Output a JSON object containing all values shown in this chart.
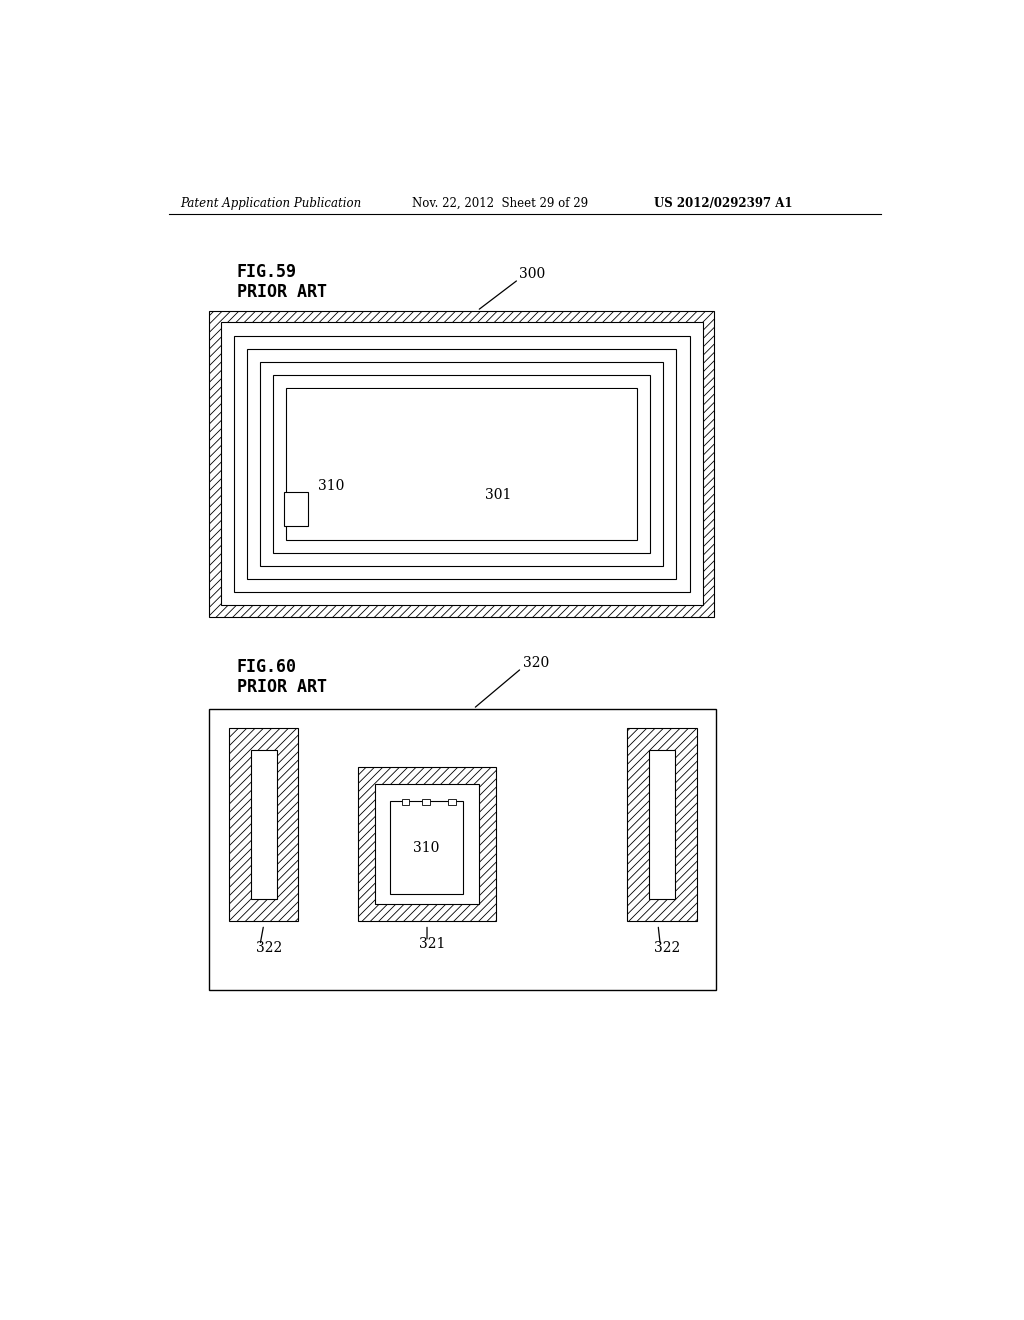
{
  "header_left": "Patent Application Publication",
  "header_mid": "Nov. 22, 2012  Sheet 29 of 29",
  "header_right": "US 2012/0292397 A1",
  "fig59_title": "FIG.59",
  "fig59_subtitle": "PRIOR ART",
  "fig60_title": "FIG.60",
  "fig60_subtitle": "PRIOR ART",
  "bg_color": "#ffffff",
  "line_color": "#000000"
}
